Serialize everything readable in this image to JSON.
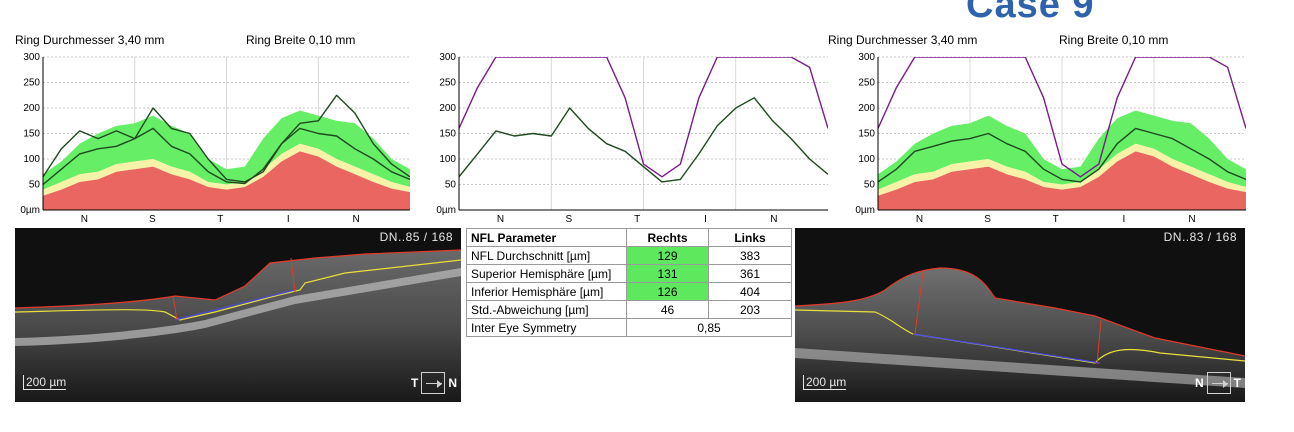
{
  "title": "Case 9",
  "left_panel": {
    "ring_diameter": "Ring Durchmesser  3,40 mm",
    "ring_width": "Ring Breite  0,10 mm",
    "scan_id": "DN..85 / 168",
    "scale_bar": "200 µm",
    "orientation_left": "T",
    "orientation_right": "N"
  },
  "right_panel": {
    "ring_diameter": "Ring Durchmesser  3,40 mm",
    "ring_width": "Ring Breite  0,10 mm",
    "scan_id": "DN..83 / 168",
    "scale_bar": "200 µm",
    "orientation_left": "N",
    "orientation_right": "T"
  },
  "axis": {
    "y_ticks": [
      "300",
      "250",
      "200",
      "150",
      "100",
      "50",
      "0µm"
    ],
    "x_ticks": [
      "N",
      "S",
      "T",
      "I",
      "N"
    ]
  },
  "colors": {
    "normal_band": "#66ee66",
    "borderline_band": "#f6f3a8",
    "abnormal_band": "#ea6660",
    "profile_line": "#1f4a1f",
    "fellow_eye_line": "#7a1a8c",
    "table_highlight": "#5ee85e",
    "title": "#2e62ad"
  },
  "nfl_table": {
    "headers": [
      "NFL Parameter",
      "Rechts",
      "Links"
    ],
    "rows": [
      {
        "label": "NFL Durchschnitt [µm]",
        "rechts": "129",
        "links": "383"
      },
      {
        "label": "Superior Hemisphäre [µm]",
        "rechts": "131",
        "links": "361"
      },
      {
        "label": "Inferior Hemisphäre [µm]",
        "rechts": "126",
        "links": "404"
      },
      {
        "label": "Std.-Abweichung [µm]",
        "rechts": "46",
        "links": "203"
      }
    ],
    "symmetry_label": "Inter Eye Symmetry",
    "symmetry_value": "0,85"
  },
  "chart_data": [
    {
      "type": "line",
      "name": "left-eye-tsnit",
      "ylim": [
        0,
        300
      ],
      "x_labels": [
        "N",
        "S",
        "T",
        "I",
        "N"
      ],
      "bands": {
        "normal_upper": [
          70,
          95,
          130,
          150,
          165,
          170,
          185,
          165,
          150,
          100,
          80,
          85,
          140,
          180,
          195,
          185,
          175,
          170,
          140,
          100,
          80
        ],
        "normal_lower": [
          40,
          55,
          70,
          75,
          90,
          95,
          100,
          85,
          75,
          55,
          50,
          55,
          80,
          110,
          130,
          120,
          100,
          85,
          70,
          55,
          45
        ],
        "borderline_lower": [
          28,
          40,
          55,
          60,
          75,
          80,
          85,
          70,
          60,
          45,
          40,
          45,
          65,
          95,
          115,
          105,
          85,
          70,
          55,
          42,
          35
        ],
        "red_upper": [
          28,
          40,
          55,
          60,
          75,
          80,
          85,
          70,
          60,
          45,
          40,
          45,
          65,
          95,
          115,
          105,
          85,
          70,
          55,
          42,
          35
        ]
      },
      "series": [
        {
          "values": [
            65,
            120,
            155,
            140,
            155,
            140,
            200,
            160,
            150,
            100,
            60,
            55,
            75,
            130,
            170,
            175,
            225,
            190,
            130,
            90,
            65
          ]
        },
        {
          "values": [
            50,
            80,
            110,
            120,
            125,
            140,
            160,
            125,
            110,
            75,
            55,
            52,
            80,
            130,
            160,
            150,
            145,
            120,
            100,
            75,
            60
          ]
        }
      ]
    },
    {
      "type": "line",
      "name": "right-eye-tsnit",
      "ylim": [
        0,
        300
      ],
      "x_labels": [
        "N",
        "S",
        "T",
        "I",
        "N"
      ],
      "series": [
        {
          "values": [
            65,
            110,
            155,
            145,
            150,
            145,
            200,
            160,
            130,
            115,
            85,
            55,
            60,
            110,
            165,
            200,
            220,
            175,
            140,
            100,
            70
          ]
        },
        {
          "values": [
            160,
            240,
            300,
            300,
            300,
            300,
            300,
            300,
            300,
            220,
            90,
            65,
            90,
            220,
            300,
            300,
            300,
            300,
            300,
            280,
            160
          ]
        }
      ]
    },
    {
      "type": "line",
      "name": "right-eye-normative",
      "ylim": [
        0,
        300
      ],
      "x_labels": [
        "N",
        "S",
        "T",
        "I",
        "N"
      ],
      "bands": {
        "normal_upper": [
          70,
          95,
          130,
          150,
          165,
          170,
          185,
          165,
          150,
          100,
          80,
          85,
          140,
          180,
          195,
          185,
          175,
          170,
          140,
          100,
          80
        ],
        "normal_lower": [
          40,
          55,
          70,
          75,
          90,
          95,
          100,
          85,
          75,
          55,
          50,
          55,
          80,
          110,
          130,
          120,
          100,
          85,
          70,
          55,
          45
        ],
        "borderline_lower": [
          28,
          40,
          55,
          60,
          75,
          80,
          85,
          70,
          60,
          45,
          40,
          45,
          65,
          95,
          115,
          105,
          85,
          70,
          55,
          42,
          35
        ],
        "red_upper": [
          28,
          40,
          55,
          60,
          75,
          80,
          85,
          70,
          60,
          45,
          40,
          45,
          65,
          95,
          115,
          105,
          85,
          70,
          55,
          42,
          35
        ]
      },
      "series": [
        {
          "values": [
            55,
            80,
            115,
            125,
            135,
            140,
            150,
            130,
            115,
            80,
            60,
            55,
            80,
            130,
            160,
            150,
            140,
            120,
            100,
            75,
            60
          ]
        },
        {
          "values": [
            160,
            240,
            300,
            300,
            300,
            300,
            300,
            300,
            300,
            220,
            90,
            65,
            90,
            220,
            300,
            300,
            300,
            300,
            300,
            280,
            160
          ]
        }
      ]
    }
  ]
}
